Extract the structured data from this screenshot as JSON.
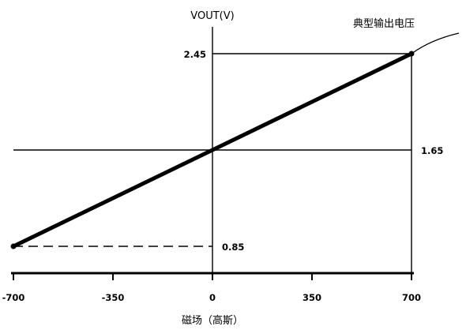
{
  "chart_data": {
    "type": "line",
    "title": "",
    "xlabel": "磁场（高斯）",
    "ylabel": "VOUT(V)",
    "xlim": [
      -700,
      700
    ],
    "ylim": [
      0.85,
      2.45
    ],
    "x_ticks": [
      "-700",
      "-350",
      "0",
      "350",
      "700"
    ],
    "y_ticks": [
      "2.45",
      "1.65",
      "0.85"
    ],
    "grid": false,
    "series": [
      {
        "name": "典型输出电压",
        "x": [
          -700,
          0,
          700
        ],
        "y": [
          0.85,
          1.65,
          2.45
        ]
      }
    ],
    "annotation": "典型输出电压",
    "reference_lines": [
      {
        "axis": "y",
        "value": 2.45,
        "style": "solid"
      },
      {
        "axis": "y",
        "value": 1.65,
        "style": "solid"
      },
      {
        "axis": "y",
        "value": 0.85,
        "style": "dashed"
      },
      {
        "axis": "x",
        "value": 700,
        "style": "solid"
      }
    ],
    "colors": {
      "line": "#000000",
      "background": "#ffffff"
    }
  }
}
